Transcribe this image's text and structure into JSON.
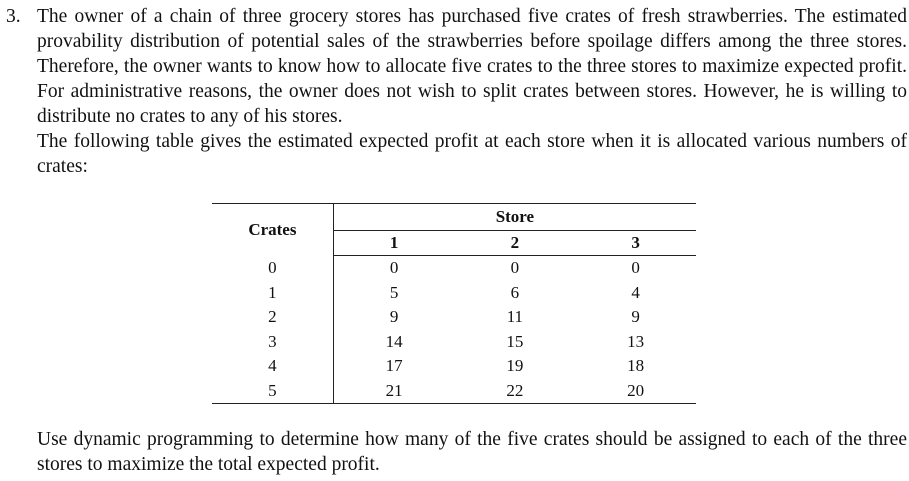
{
  "problem": {
    "number": "3.",
    "intro": "The owner of a chain of three grocery stores has purchased five crates of fresh strawberries. The estimated provability distribution of potential sales of the strawberries before spoilage differs among the three stores. Therefore, the owner wants to know how to allocate five crates to the three stores to maximize expected profit. For administrative reasons, the owner does not wish to split crates between stores. However, he is willing to distribute no crates to any of his stores.",
    "table_intro": "The following table gives the estimated expected profit at each store when it is allocated various numbers of crates:",
    "question": "Use dynamic programming to determine how many of the five crates should be assigned to each of the three stores to maximize the total expected profit."
  },
  "table": {
    "crates_header": "Crates",
    "store_header": "Store",
    "store_numbers": [
      "1",
      "2",
      "3"
    ],
    "rows": [
      {
        "crates": "0",
        "s1": "0",
        "s2": "0",
        "s3": "0"
      },
      {
        "crates": "1",
        "s1": "5",
        "s2": "6",
        "s3": "4"
      },
      {
        "crates": "2",
        "s1": "9",
        "s2": "11",
        "s3": "9"
      },
      {
        "crates": "3",
        "s1": "14",
        "s2": "15",
        "s3": "13"
      },
      {
        "crates": "4",
        "s1": "17",
        "s2": "19",
        "s3": "18"
      },
      {
        "crates": "5",
        "s1": "21",
        "s2": "22",
        "s3": "20"
      }
    ]
  }
}
